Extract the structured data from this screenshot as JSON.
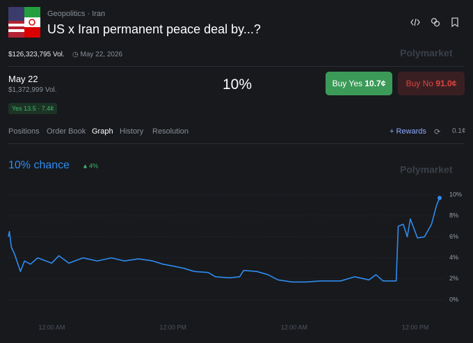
{
  "header": {
    "breadcrumb": [
      "Geopolitics",
      "Iran"
    ],
    "title": "US x Iran permanent peace deal by...?"
  },
  "meta": {
    "volume": "$126,323,795 Vol.",
    "date": "May 22, 2026",
    "brand": "Polymarket"
  },
  "outcome": {
    "name": "May 22",
    "volume": "$1,372,999 Vol.",
    "chance": "10%",
    "badge": "Yes 13.5 · 7.4¢",
    "buy_yes_label": "Buy Yes",
    "buy_yes_price": "10.7¢",
    "buy_no_label": "Buy No",
    "buy_no_price": "91.0¢"
  },
  "tabs": [
    "Positions",
    "Order Book",
    "Graph",
    "History",
    "Resolution"
  ],
  "actions": {
    "rewards": "Rewards",
    "spread": "0.1¢"
  },
  "chart_data": {
    "type": "line",
    "title": "10% chance",
    "change": "4%",
    "watermark": "Polymarket",
    "color": "#2f8cf0",
    "grid": true,
    "x": [
      -4.3,
      -4.2,
      -4.0,
      -3.7,
      -3.1,
      -2.7,
      -2.1,
      -1.4,
      0,
      0.7,
      1.7,
      3.1,
      4.5,
      5.9,
      7.2,
      8.6,
      10.0,
      11.0,
      12.1,
      13.1,
      14.1,
      15.5,
      16.2,
      17.6,
      18.6,
      19.0,
      20.3,
      21.4,
      22.4,
      23.8,
      25.2,
      26.6,
      28.6,
      30.0,
      31.4,
      32.1,
      32.8,
      34.1,
      34.3,
      34.8,
      35.2,
      35.5,
      36.2,
      36.9,
      37.6,
      38.1,
      38.4
    ],
    "values": [
      6.0,
      6.5,
      5.0,
      4.4,
      2.7,
      3.7,
      3.4,
      4.0,
      3.5,
      4.2,
      3.5,
      4.0,
      3.7,
      4.0,
      3.7,
      3.9,
      3.7,
      3.4,
      3.2,
      3.0,
      2.7,
      2.6,
      2.2,
      2.1,
      2.2,
      2.8,
      2.7,
      2.4,
      1.9,
      1.7,
      1.7,
      1.8,
      1.8,
      2.2,
      1.9,
      2.4,
      1.8,
      1.8,
      7.0,
      7.2,
      6.0,
      7.7,
      5.9,
      6.0,
      7.2,
      9.0,
      9.7
    ],
    "xlim": [
      -4.3,
      38.4
    ],
    "xticks": [
      {
        "value": 0,
        "label": "12:00 AM"
      },
      {
        "value": 12,
        "label": "12:00 PM"
      },
      {
        "value": 24,
        "label": "12:00 AM"
      },
      {
        "value": 36,
        "label": "12:00 PM"
      }
    ],
    "ylim": [
      0,
      10
    ],
    "yticks": [
      {
        "value": 0,
        "label": "0%"
      },
      {
        "value": 2,
        "label": "2%"
      },
      {
        "value": 4,
        "label": "4%"
      },
      {
        "value": 6,
        "label": "6%"
      },
      {
        "value": 8,
        "label": "8%"
      },
      {
        "value": 10,
        "label": "10%"
      }
    ]
  }
}
